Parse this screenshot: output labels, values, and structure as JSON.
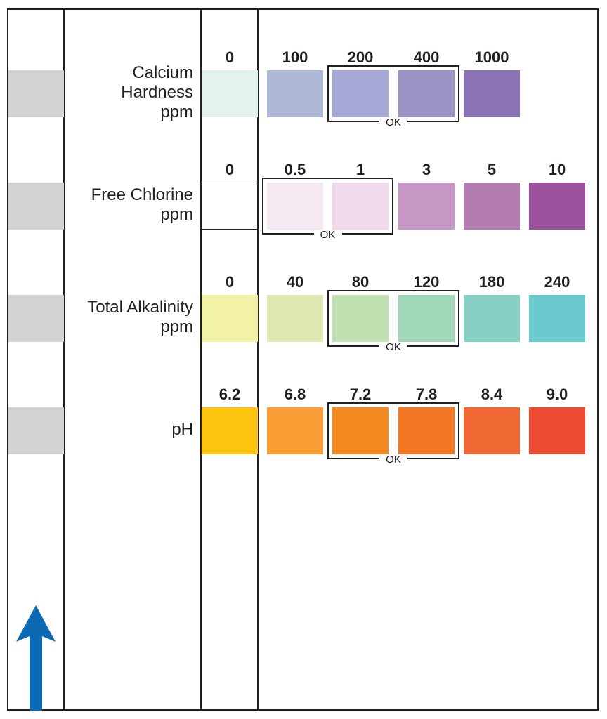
{
  "ok_label": "OK",
  "rows": [
    {
      "id": "calcium-hardness",
      "label_lines": [
        "Calcium",
        "Hardness",
        "ppm"
      ],
      "values": [
        "0",
        "100",
        "200",
        "400",
        "1000"
      ],
      "colors": [
        "#e1f2ef",
        "#adb9d7",
        "#a7a9d6",
        "#9b94c5",
        "#8c73b3"
      ],
      "ok_range": [
        "200",
        "400"
      ]
    },
    {
      "id": "free-chlorine",
      "label_lines": [
        "Free Chlorine",
        "ppm"
      ],
      "values": [
        "0",
        "0.5",
        "1",
        "3",
        "5",
        "10"
      ],
      "colors": [
        "#ffffff",
        "#f4e9f2",
        "#efd9ea",
        "#c797c5",
        "#b47db1",
        "#9d52a0"
      ],
      "ok_range": [
        "0.5",
        "1"
      ]
    },
    {
      "id": "total-alkalinity",
      "label_lines": [
        "Total Alkalinity",
        "ppm"
      ],
      "values": [
        "0",
        "40",
        "80",
        "120",
        "180",
        "240"
      ],
      "colors": [
        "#f2f2a7",
        "#dce8b0",
        "#c1e0b1",
        "#a0d7b9",
        "#86d0c6",
        "#6acace"
      ],
      "ok_range": [
        "80",
        "120"
      ]
    },
    {
      "id": "ph",
      "label_lines": [
        "pH"
      ],
      "values": [
        "6.2",
        "6.8",
        "7.2",
        "7.8",
        "8.4",
        "9.0"
      ],
      "colors": [
        "#fdc50f",
        "#f99d35",
        "#f68a22",
        "#f47725",
        "#f06934",
        "#ed4c32"
      ],
      "ok_range": [
        "7.2",
        "7.8"
      ]
    }
  ]
}
